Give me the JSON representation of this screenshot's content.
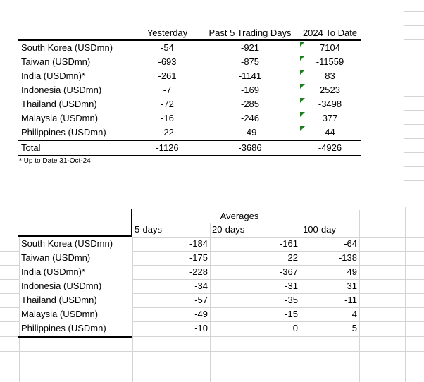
{
  "colors": {
    "error_triangle_green": "#1f7d1f",
    "gridline_gray": "#d4d4d4",
    "border_black": "#000000",
    "text": "#000000"
  },
  "table1": {
    "col_headers": [
      "Yesterday",
      "Past 5 Trading Days",
      "2024 To Date"
    ],
    "rows": [
      {
        "label": "South Korea (USDmn)",
        "values": [
          "-54",
          "-921",
          "7104"
        ]
      },
      {
        "label": "Taiwan (USDmn)",
        "values": [
          "-693",
          "-875",
          "-11559"
        ]
      },
      {
        "label": "India (USDmn)*",
        "values": [
          "-261",
          "-1141",
          "83"
        ]
      },
      {
        "label": "Indonesia (USDmn)",
        "values": [
          "-7",
          "-169",
          "2523"
        ]
      },
      {
        "label": "Thailand (USDmn)",
        "values": [
          "-72",
          "-285",
          "-3498"
        ]
      },
      {
        "label": "Malaysia (USDmn)",
        "values": [
          "-16",
          "-246",
          "377"
        ]
      },
      {
        "label": "Philippines (USDmn)",
        "values": [
          "-22",
          "-49",
          "44"
        ]
      }
    ],
    "total": {
      "label": "Total",
      "values": [
        "-1126",
        "-3686",
        "-4926"
      ]
    },
    "footnote": {
      "star": "*",
      "text": " Up to Date 31-Oct-24"
    }
  },
  "table2": {
    "title": "Averages",
    "col_headers": [
      "5-days",
      "20-days",
      "100-day"
    ],
    "rows": [
      {
        "label": "South Korea (USDmn)",
        "values": [
          "-184",
          "-161",
          "-64"
        ]
      },
      {
        "label": "Taiwan (USDmn)",
        "values": [
          "-175",
          "22",
          "-138"
        ]
      },
      {
        "label": "India (USDmn)*",
        "values": [
          "-228",
          "-367",
          "49"
        ]
      },
      {
        "label": "Indonesia (USDmn)",
        "values": [
          "-34",
          "-31",
          "31"
        ]
      },
      {
        "label": "Thailand (USDmn)",
        "values": [
          "-57",
          "-35",
          "-11"
        ]
      },
      {
        "label": "Malaysia (USDmn)",
        "values": [
          "-49",
          "-15",
          "4"
        ]
      },
      {
        "label": "Philippines (USDmn)",
        "values": [
          "-10",
          "0",
          "5"
        ]
      }
    ]
  }
}
